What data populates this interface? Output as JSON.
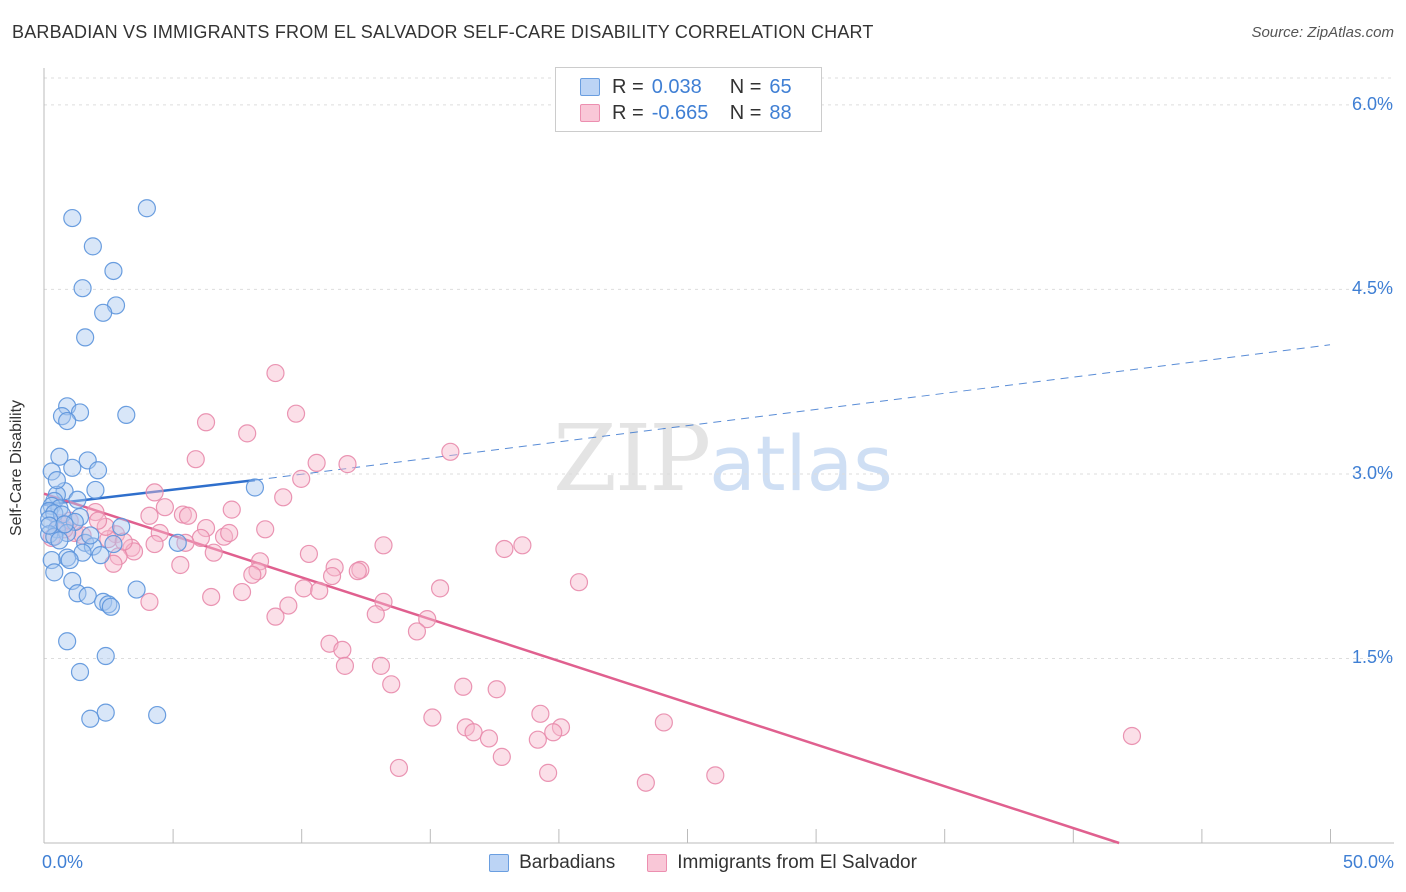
{
  "title": "BARBADIAN VS IMMIGRANTS FROM EL SALVADOR SELF-CARE DISABILITY CORRELATION CHART",
  "source": "Source: ZipAtlas.com",
  "watermark": {
    "zip": "ZIP",
    "atlas": "atlas"
  },
  "legend_top": {
    "rows": [
      {
        "r_label": "R =",
        "r_value": "0.038",
        "n_label": "N =",
        "n_value": "65"
      },
      {
        "r_label": "R =",
        "r_value": "-0.665",
        "n_label": "N =",
        "n_value": "88"
      }
    ]
  },
  "legend_bottom": [
    "Barbadians",
    "Immigrants from El Salvador"
  ],
  "colors": {
    "blue_fill": "#a9c8f0",
    "blue_stroke": "#5b93db",
    "blue_line": "#2f6fcc",
    "pink_fill": "#f6b8cd",
    "pink_stroke": "#e88aab",
    "pink_line": "#e0608f",
    "tick_text": "#3f7fd4",
    "grid": "#dddddd"
  },
  "chart_data": {
    "type": "scatter",
    "title": "BARBADIAN VS IMMIGRANTS FROM EL SALVADOR SELF-CARE DISABILITY CORRELATION CHART",
    "xlabel": "",
    "ylabel": "Self-Care Disability",
    "xlim": [
      0,
      50
    ],
    "ylim": [
      0,
      6.3
    ],
    "x_tick_labels": [
      {
        "value": 0,
        "label": "0.0%"
      },
      {
        "value": 50,
        "label": "50.0%"
      }
    ],
    "y_ticks": [
      {
        "value": 1.5,
        "label": "1.5%"
      },
      {
        "value": 3.0,
        "label": "3.0%"
      },
      {
        "value": 4.5,
        "label": "4.5%"
      },
      {
        "value": 6.0,
        "label": "6.0%"
      }
    ],
    "x_minor_ticks": [
      5,
      10,
      15,
      20,
      25,
      30,
      35,
      40,
      45,
      50
    ],
    "series": [
      {
        "name": "Barbadians",
        "R": 0.038,
        "N": 65,
        "trend": {
          "solid": [
            [
              0,
              2.75
            ],
            [
              8.2,
              2.95
            ]
          ],
          "dashed": [
            [
              8.2,
              2.95
            ],
            [
              50,
              4.05
            ]
          ]
        },
        "points": [
          [
            4.0,
            5.16
          ],
          [
            1.1,
            5.08
          ],
          [
            1.9,
            4.85
          ],
          [
            2.7,
            4.65
          ],
          [
            1.5,
            4.51
          ],
          [
            2.8,
            4.37
          ],
          [
            2.3,
            4.31
          ],
          [
            1.6,
            4.11
          ],
          [
            0.9,
            3.55
          ],
          [
            1.4,
            3.5
          ],
          [
            3.2,
            3.48
          ],
          [
            0.7,
            3.47
          ],
          [
            0.9,
            3.43
          ],
          [
            0.6,
            3.14
          ],
          [
            1.7,
            3.11
          ],
          [
            1.1,
            3.05
          ],
          [
            2.1,
            3.03
          ],
          [
            0.3,
            3.02
          ],
          [
            8.2,
            2.89
          ],
          [
            2.0,
            2.87
          ],
          [
            0.8,
            2.86
          ],
          [
            0.5,
            2.83
          ],
          [
            0.4,
            2.78
          ],
          [
            0.3,
            2.74
          ],
          [
            0.6,
            2.72
          ],
          [
            0.2,
            2.7
          ],
          [
            0.4,
            2.68
          ],
          [
            0.7,
            2.67
          ],
          [
            1.4,
            2.65
          ],
          [
            0.2,
            2.63
          ],
          [
            1.2,
            2.61
          ],
          [
            3.0,
            2.57
          ],
          [
            0.5,
            2.55
          ],
          [
            0.9,
            2.52
          ],
          [
            0.2,
            2.51
          ],
          [
            0.4,
            2.49
          ],
          [
            0.6,
            2.46
          ],
          [
            1.6,
            2.44
          ],
          [
            5.2,
            2.44
          ],
          [
            1.9,
            2.41
          ],
          [
            1.5,
            2.36
          ],
          [
            2.2,
            2.34
          ],
          [
            0.9,
            2.32
          ],
          [
            1.0,
            2.3
          ],
          [
            0.3,
            2.3
          ],
          [
            1.1,
            2.13
          ],
          [
            3.6,
            2.06
          ],
          [
            1.3,
            2.03
          ],
          [
            1.7,
            2.01
          ],
          [
            2.3,
            1.96
          ],
          [
            2.5,
            1.94
          ],
          [
            2.6,
            1.92
          ],
          [
            0.9,
            1.64
          ],
          [
            2.4,
            1.52
          ],
          [
            1.4,
            1.39
          ],
          [
            2.4,
            1.06
          ],
          [
            4.4,
            1.04
          ],
          [
            1.8,
            1.01
          ],
          [
            0.2,
            2.58
          ],
          [
            0.8,
            2.59
          ],
          [
            1.3,
            2.79
          ],
          [
            0.4,
            2.2
          ],
          [
            2.7,
            2.43
          ],
          [
            1.8,
            2.5
          ],
          [
            0.5,
            2.95
          ]
        ]
      },
      {
        "name": "Immigrants from El Salvador",
        "R": -0.665,
        "N": 88,
        "trend": {
          "solid": [
            [
              0,
              2.84
            ],
            [
              41.8,
              0.0
            ]
          ]
        },
        "points": [
          [
            9.0,
            3.82
          ],
          [
            9.8,
            3.49
          ],
          [
            6.3,
            3.42
          ],
          [
            7.9,
            3.33
          ],
          [
            15.8,
            3.18
          ],
          [
            5.9,
            3.12
          ],
          [
            10.6,
            3.09
          ],
          [
            11.8,
            3.08
          ],
          [
            10.0,
            2.96
          ],
          [
            4.3,
            2.85
          ],
          [
            9.3,
            2.81
          ],
          [
            4.7,
            2.73
          ],
          [
            7.3,
            2.71
          ],
          [
            2.0,
            2.69
          ],
          [
            5.4,
            2.67
          ],
          [
            4.1,
            2.66
          ],
          [
            5.6,
            2.66
          ],
          [
            6.3,
            2.56
          ],
          [
            8.6,
            2.55
          ],
          [
            4.5,
            2.52
          ],
          [
            2.8,
            2.51
          ],
          [
            7.0,
            2.49
          ],
          [
            0.3,
            2.48
          ],
          [
            6.1,
            2.48
          ],
          [
            2.5,
            2.47
          ],
          [
            5.5,
            2.44
          ],
          [
            4.3,
            2.43
          ],
          [
            13.2,
            2.42
          ],
          [
            18.6,
            2.42
          ],
          [
            3.4,
            2.4
          ],
          [
            17.9,
            2.39
          ],
          [
            3.5,
            2.37
          ],
          [
            6.6,
            2.36
          ],
          [
            10.3,
            2.35
          ],
          [
            2.9,
            2.33
          ],
          [
            8.4,
            2.29
          ],
          [
            5.3,
            2.26
          ],
          [
            2.7,
            2.27
          ],
          [
            11.3,
            2.24
          ],
          [
            12.3,
            2.22
          ],
          [
            8.3,
            2.21
          ],
          [
            12.2,
            2.21
          ],
          [
            8.1,
            2.18
          ],
          [
            11.2,
            2.17
          ],
          [
            20.8,
            2.12
          ],
          [
            10.1,
            2.07
          ],
          [
            15.4,
            2.07
          ],
          [
            10.7,
            2.05
          ],
          [
            7.7,
            2.04
          ],
          [
            6.5,
            2.0
          ],
          [
            4.1,
            1.96
          ],
          [
            13.2,
            1.96
          ],
          [
            9.5,
            1.93
          ],
          [
            12.9,
            1.86
          ],
          [
            9.0,
            1.84
          ],
          [
            14.9,
            1.82
          ],
          [
            14.5,
            1.72
          ],
          [
            11.1,
            1.62
          ],
          [
            11.6,
            1.57
          ],
          [
            11.7,
            1.44
          ],
          [
            13.1,
            1.44
          ],
          [
            13.5,
            1.29
          ],
          [
            16.3,
            1.27
          ],
          [
            17.6,
            1.25
          ],
          [
            19.3,
            1.05
          ],
          [
            15.1,
            1.02
          ],
          [
            24.1,
            0.98
          ],
          [
            16.4,
            0.94
          ],
          [
            20.1,
            0.94
          ],
          [
            16.7,
            0.9
          ],
          [
            19.8,
            0.9
          ],
          [
            17.3,
            0.85
          ],
          [
            19.2,
            0.84
          ],
          [
            42.3,
            0.87
          ],
          [
            17.8,
            0.7
          ],
          [
            13.8,
            0.61
          ],
          [
            19.6,
            0.57
          ],
          [
            26.1,
            0.55
          ],
          [
            23.4,
            0.49
          ],
          [
            1.2,
            2.52
          ],
          [
            0.8,
            2.55
          ],
          [
            1.5,
            2.5
          ],
          [
            2.4,
            2.57
          ],
          [
            0.6,
            2.6
          ],
          [
            3.1,
            2.45
          ],
          [
            1.0,
            2.62
          ],
          [
            7.2,
            2.52
          ],
          [
            2.1,
            2.62
          ]
        ]
      }
    ]
  }
}
